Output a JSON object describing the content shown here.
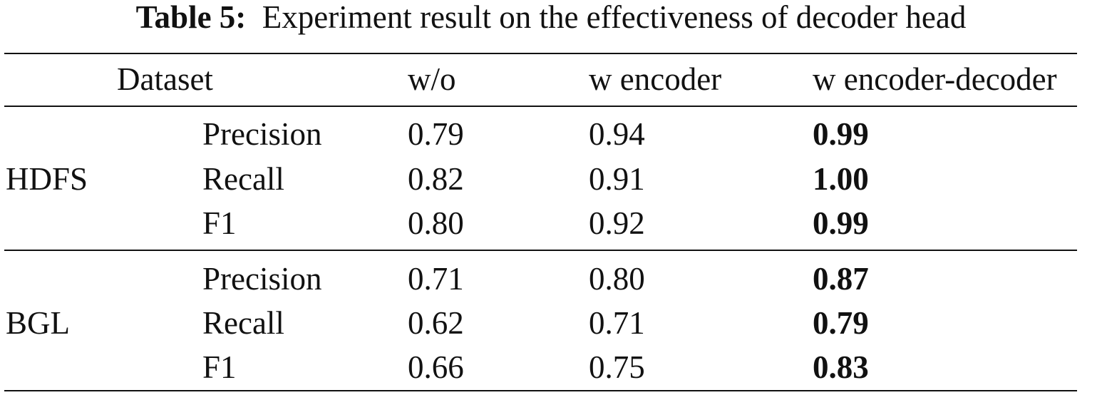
{
  "caption": {
    "label": "Table 5:",
    "text": "Experiment result on the effectiveness of decoder head"
  },
  "header": {
    "dataset": "Dataset",
    "col_wo": "w/o",
    "col_encoder": "w encoder",
    "col_encoder_decoder": "w encoder-decoder"
  },
  "groups": [
    {
      "name": "HDFS",
      "rows": [
        {
          "metric": "Precision",
          "wo": "0.79",
          "encoder": "0.94",
          "encoder_decoder": "0.99"
        },
        {
          "metric": "Recall",
          "wo": "0.82",
          "encoder": "0.91",
          "encoder_decoder": "1.00"
        },
        {
          "metric": "F1",
          "wo": "0.80",
          "encoder": "0.92",
          "encoder_decoder": "0.99"
        }
      ]
    },
    {
      "name": "BGL",
      "rows": [
        {
          "metric": "Precision",
          "wo": "0.71",
          "encoder": "0.80",
          "encoder_decoder": "0.87"
        },
        {
          "metric": "Recall",
          "wo": "0.62",
          "encoder": "0.71",
          "encoder_decoder": "0.79"
        },
        {
          "metric": "F1",
          "wo": "0.66",
          "encoder": "0.75",
          "encoder_decoder": "0.83"
        }
      ]
    }
  ]
}
